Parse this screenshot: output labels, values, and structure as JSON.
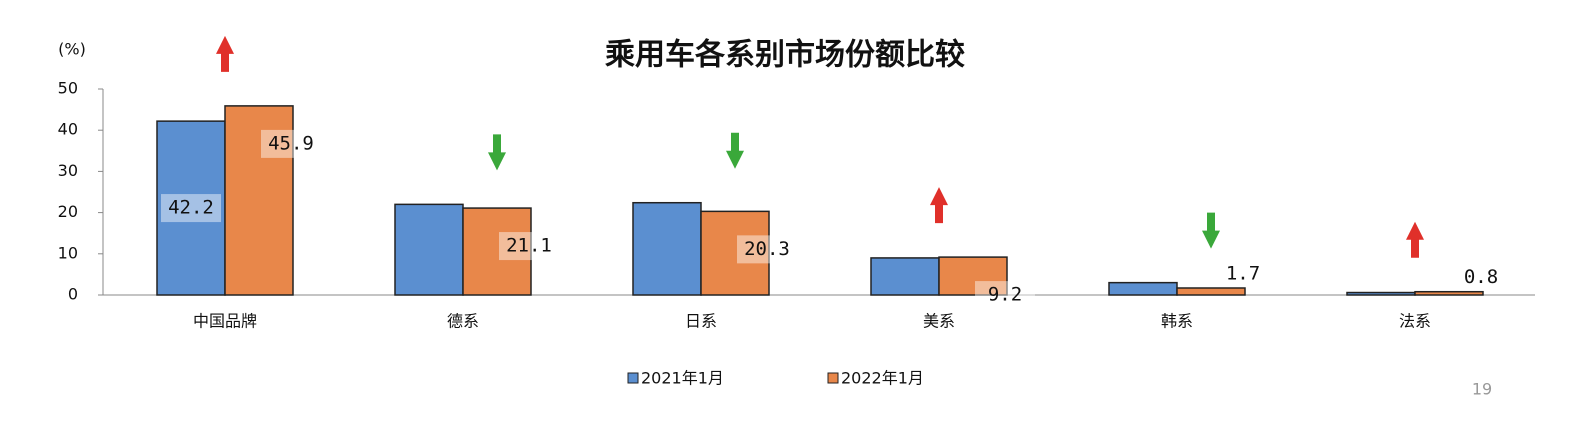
{
  "chart_data": {
    "type": "bar",
    "title": "乘用车各系别市场份额比较",
    "y_label": "(%)",
    "categories": [
      "中国品牌",
      "德系",
      "日系",
      "美系",
      "韩系",
      "法系"
    ],
    "series": [
      {
        "name": "2021年1月",
        "color": "#5b8fd0",
        "values": [
          42.2,
          22,
          22.4,
          9.0,
          3.0,
          0.6
        ],
        "value_labels": [
          "42.2",
          null,
          null,
          null,
          null,
          null
        ]
      },
      {
        "name": "2022年1月",
        "color": "#e8874a",
        "values": [
          45.9,
          21.1,
          20.3,
          9.2,
          1.7,
          0.8
        ],
        "value_labels": [
          "45.9",
          "21.1",
          "20.3",
          "9.2",
          "1.7",
          "0.8"
        ]
      }
    ],
    "ylim": [
      0,
      50
    ],
    "yticks": [
      0,
      10,
      20,
      30,
      40,
      50
    ],
    "page_number": "19"
  }
}
